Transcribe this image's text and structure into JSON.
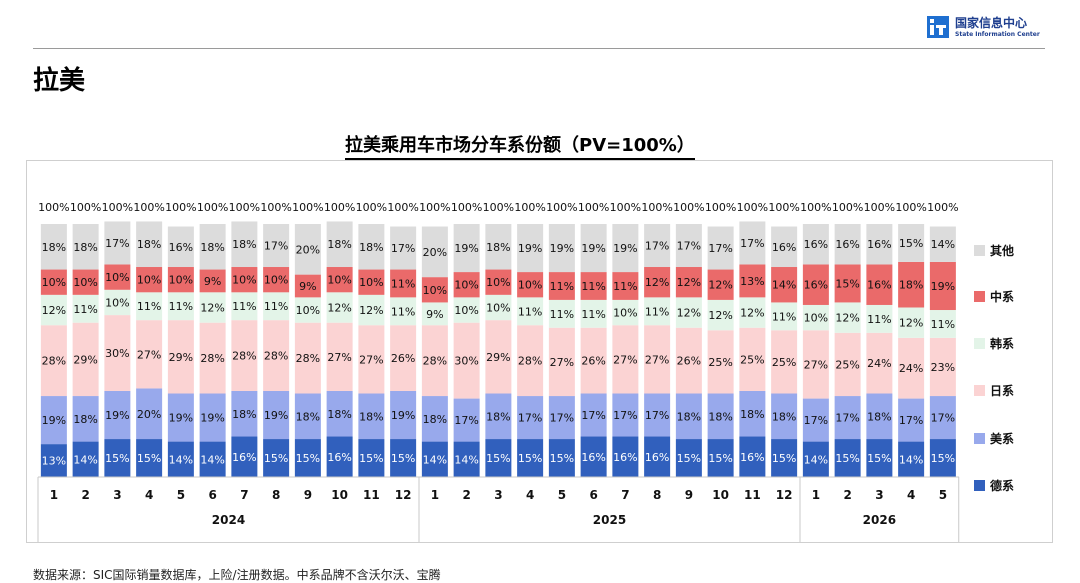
{
  "header": {
    "logo_cn": "国家信息中心",
    "logo_en": "State Information Center"
  },
  "section_title": "拉美",
  "chart_title": "拉美乘用车市场分车系份额（PV=100%）",
  "source_note": "数据来源：SIC国际销量数据库，上险/注册数据。中系品牌不含沃尔沃、宝腾",
  "colors": {
    "德系": "#3160bd",
    "美系": "#98a9ec",
    "日系": "#fbd3d3",
    "韩系": "#e3f4e8",
    "中系": "#ea6a6a",
    "其他": "#dcdcdc"
  },
  "chart_data": {
    "type": "bar",
    "stacked": true,
    "title": "拉美乘用车市场分车系份额（PV=100%）",
    "categories": [
      "1",
      "2",
      "3",
      "4",
      "5",
      "6",
      "7",
      "8",
      "9",
      "10",
      "11",
      "12",
      "1",
      "2",
      "3",
      "4",
      "5",
      "6",
      "7",
      "8",
      "9",
      "10",
      "11",
      "12",
      "1",
      "2",
      "3",
      "4",
      "5"
    ],
    "groups": [
      {
        "label": "2024",
        "count": 12
      },
      {
        "label": "2025",
        "count": 12
      },
      {
        "label": "2026",
        "count": 5
      }
    ],
    "totals": [
      "100%",
      "100%",
      "100%",
      "100%",
      "100%",
      "100%",
      "100%",
      "100%",
      "100%",
      "100%",
      "100%",
      "100%",
      "100%",
      "100%",
      "100%",
      "100%",
      "100%",
      "100%",
      "100%",
      "100%",
      "100%",
      "100%",
      "100%",
      "100%",
      "100%",
      "100%",
      "100%",
      "100%",
      "100%"
    ],
    "series": [
      {
        "name": "德系",
        "values": [
          13,
          14,
          15,
          15,
          14,
          14,
          16,
          15,
          15,
          16,
          15,
          15,
          14,
          14,
          15,
          15,
          15,
          16,
          16,
          16,
          15,
          15,
          16,
          15,
          14,
          15,
          15,
          14,
          15
        ]
      },
      {
        "name": "美系",
        "values": [
          19,
          18,
          19,
          20,
          19,
          19,
          18,
          19,
          18,
          18,
          18,
          19,
          18,
          17,
          18,
          17,
          17,
          17,
          17,
          17,
          18,
          18,
          18,
          18,
          17,
          17,
          18,
          17,
          17
        ]
      },
      {
        "name": "日系",
        "values": [
          28,
          29,
          30,
          27,
          29,
          28,
          28,
          28,
          28,
          27,
          27,
          26,
          28,
          30,
          29,
          28,
          27,
          26,
          27,
          27,
          26,
          25,
          25,
          25,
          27,
          25,
          24,
          24,
          23
        ]
      },
      {
        "name": "韩系",
        "values": [
          12,
          11,
          10,
          11,
          11,
          12,
          11,
          11,
          10,
          12,
          12,
          11,
          9,
          10,
          10,
          11,
          11,
          11,
          10,
          11,
          12,
          12,
          12,
          11,
          10,
          12,
          11,
          12,
          11
        ]
      },
      {
        "name": "中系",
        "values": [
          10,
          10,
          10,
          10,
          10,
          9,
          10,
          10,
          9,
          10,
          10,
          11,
          10,
          10,
          10,
          10,
          11,
          11,
          11,
          12,
          12,
          12,
          13,
          14,
          16,
          15,
          16,
          18,
          19
        ]
      },
      {
        "name": "其他",
        "values": [
          18,
          18,
          17,
          18,
          16,
          18,
          18,
          17,
          20,
          18,
          18,
          17,
          20,
          19,
          18,
          19,
          19,
          19,
          19,
          17,
          17,
          17,
          17,
          16,
          16,
          16,
          16,
          15,
          14
        ]
      }
    ],
    "ylim": [
      0,
      100
    ],
    "legend": "right",
    "legend_order": [
      "其他",
      "中系",
      "韩系",
      "日系",
      "美系",
      "德系"
    ],
    "data_labels": true
  }
}
